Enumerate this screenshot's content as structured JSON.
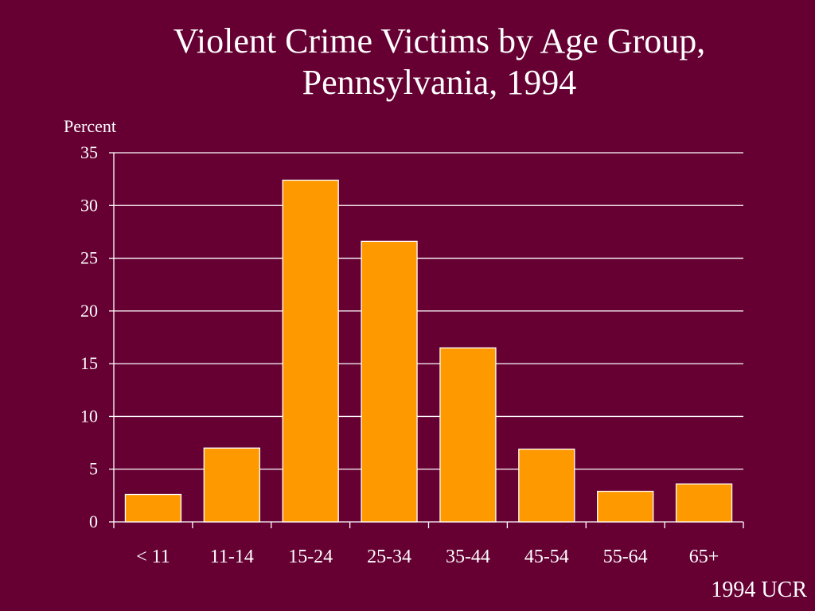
{
  "chart_data": {
    "type": "bar",
    "title": [
      "Violent Crime Victims by Age Group,",
      "Pennsylvania, 1994"
    ],
    "ylabel": "Percent",
    "xlabel": "",
    "categories": [
      "< 11",
      "11-14",
      "15-24",
      "25-34",
      "35-44",
      "45-54",
      "55-64",
      "65+"
    ],
    "values": [
      2.6,
      7.0,
      32.4,
      26.6,
      16.5,
      6.9,
      2.9,
      3.6
    ],
    "ylim": [
      0,
      35
    ],
    "yticks": [
      0,
      5,
      10,
      15,
      20,
      25,
      30,
      35
    ],
    "grid": true,
    "legend": "none",
    "colors": {
      "background": "#660033",
      "bar": "#FF9900",
      "bar_edge": "#FFFFFF",
      "grid": "#FFFFFF",
      "text": "#FFFFFF"
    }
  },
  "source": "1994 UCR"
}
